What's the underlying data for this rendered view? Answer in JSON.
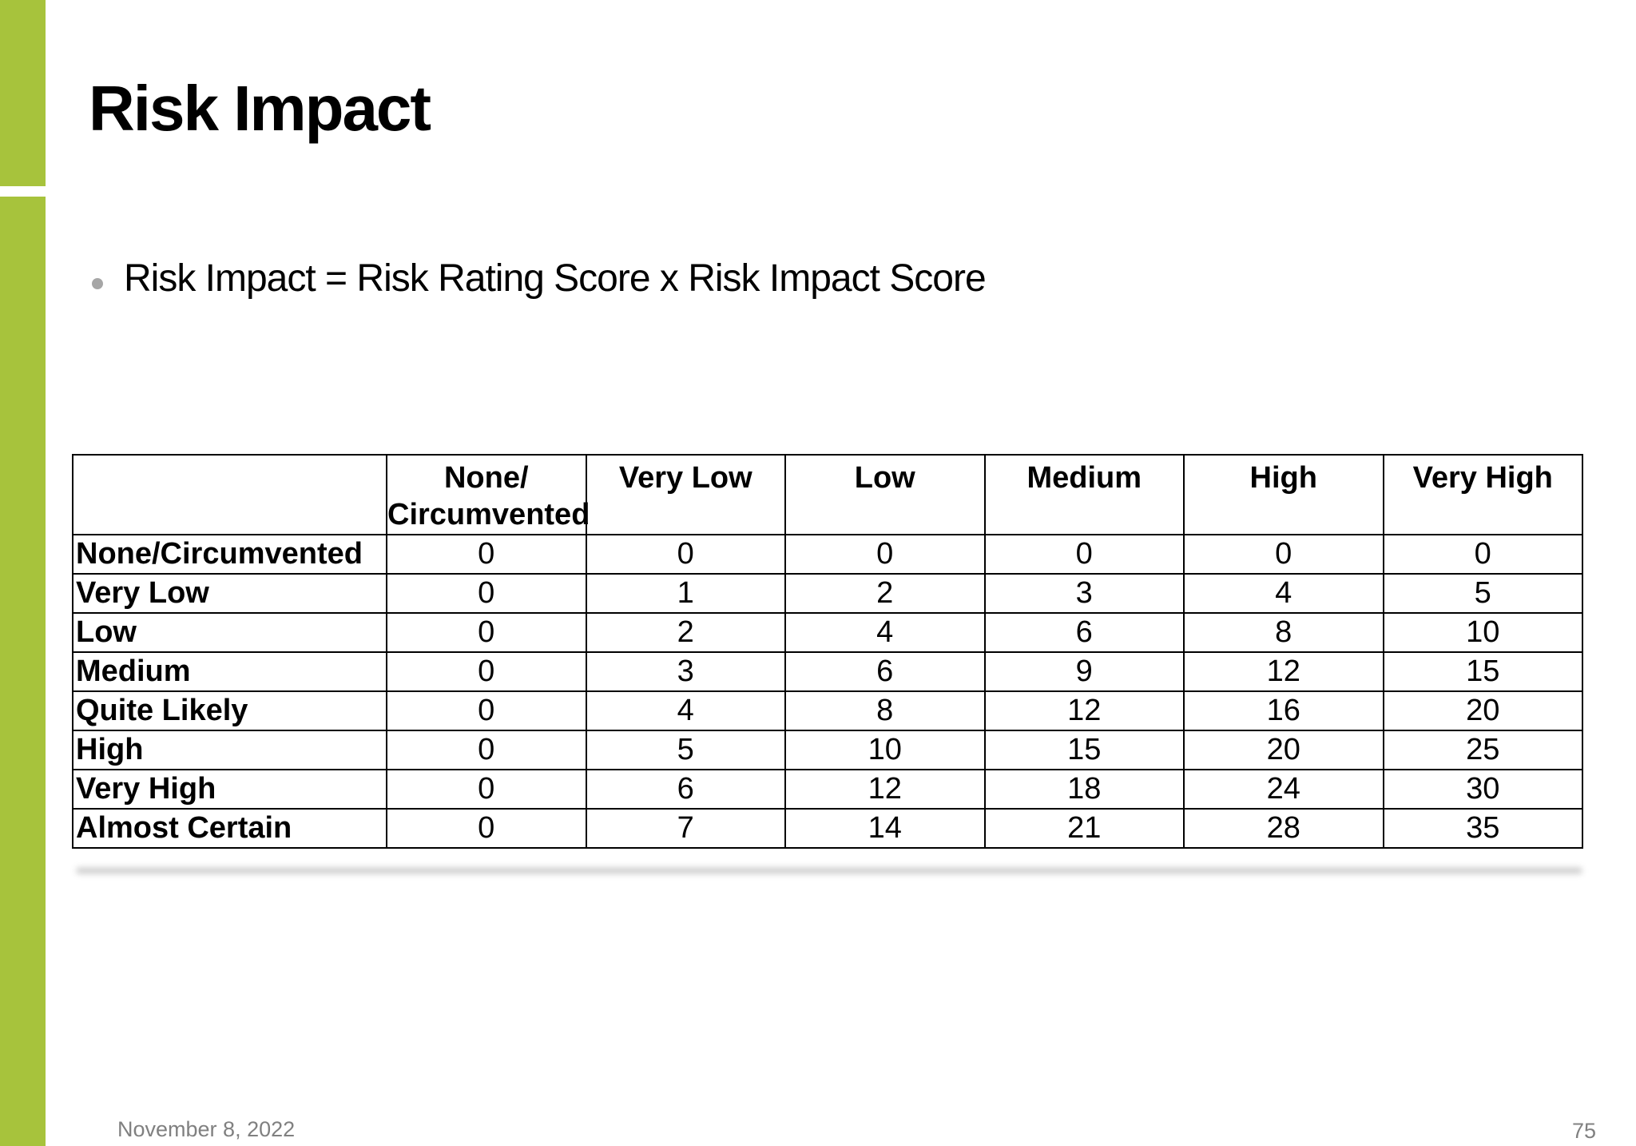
{
  "slide": {
    "title": "Risk Impact",
    "bullet_text": "Risk Impact = Risk Rating Score x Risk Impact Score",
    "footer_date": "November 8, 2022",
    "page_number": "75"
  },
  "colors": {
    "accent_green": "#A7C33C",
    "bullet_dot_gray": "#A6A6A6",
    "footer_text_gray": "#808080",
    "table_border_black": "#000000"
  },
  "table": {
    "col_headers": [
      "None/\nCircumvented",
      "Very Low",
      "Low",
      "Medium",
      "High",
      "Very High"
    ],
    "row_headers": [
      "None/Circumvented",
      "Very Low",
      "Low",
      "Medium",
      "Quite Likely",
      "High",
      "Very High",
      "Almost Certain"
    ],
    "values": [
      [
        0,
        0,
        0,
        0,
        0,
        0
      ],
      [
        0,
        1,
        2,
        3,
        4,
        5
      ],
      [
        0,
        2,
        4,
        6,
        8,
        10
      ],
      [
        0,
        3,
        6,
        9,
        12,
        15
      ],
      [
        0,
        4,
        8,
        12,
        16,
        20
      ],
      [
        0,
        5,
        10,
        15,
        20,
        25
      ],
      [
        0,
        6,
        12,
        18,
        24,
        30
      ],
      [
        0,
        7,
        14,
        21,
        28,
        35
      ]
    ]
  }
}
